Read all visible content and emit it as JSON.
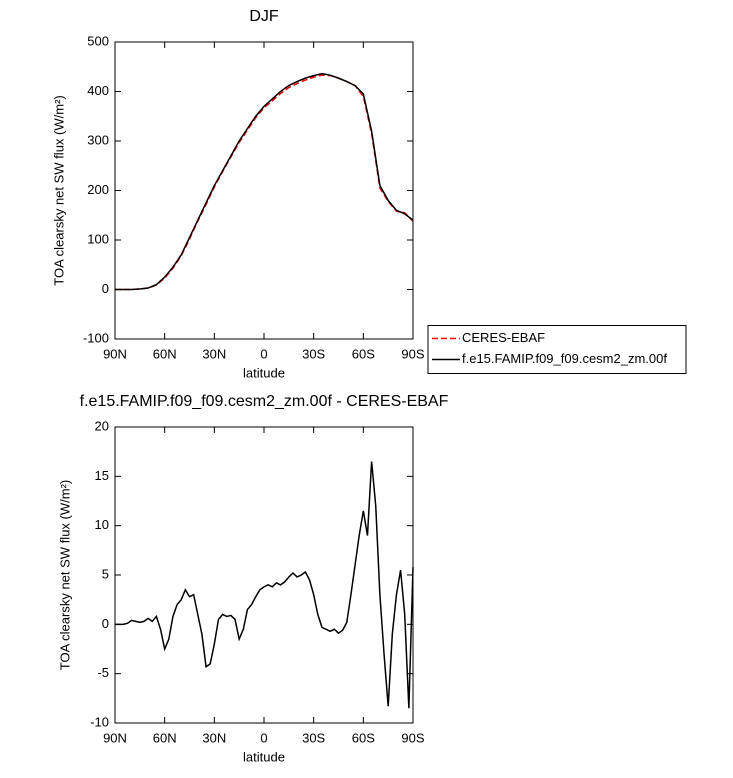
{
  "chart_data": [
    {
      "type": "line",
      "title": "DJF",
      "xlabel": "latitude",
      "ylabel": "TOA clearsky net SW flux (W/m²)",
      "x": [
        90,
        85,
        80,
        75,
        70,
        65,
        60,
        55,
        50,
        45,
        40,
        35,
        30,
        25,
        20,
        15,
        10,
        5,
        0,
        -5,
        -10,
        -15,
        -20,
        -25,
        -30,
        -35,
        -40,
        -45,
        -50,
        -55,
        -60,
        -65,
        -70,
        -75,
        -80,
        -85,
        -90
      ],
      "series": [
        {
          "name": "CERES-EBAF",
          "color": "#ff0000",
          "linestyle": "dashed",
          "values": [
            0,
            0,
            0,
            1,
            3,
            9,
            23,
            43,
            68,
            102,
            138,
            172,
            207,
            238,
            268,
            297,
            322,
            347,
            367,
            381,
            396,
            408,
            416,
            423,
            429,
            433,
            432,
            427,
            420,
            412,
            390,
            315,
            205,
            178,
            158,
            155,
            138
          ]
        },
        {
          "name": "f.e15.FAMIP.f09_f09.cesm2_zm.00f",
          "color": "#000000",
          "linestyle": "solid",
          "values": [
            0,
            0,
            0,
            1,
            3,
            10,
            25,
            45,
            70,
            105,
            140,
            175,
            210,
            240,
            270,
            300,
            325,
            350,
            370,
            385,
            400,
            412,
            420,
            427,
            432,
            436,
            433,
            427,
            420,
            412,
            395,
            320,
            210,
            180,
            160,
            153,
            140
          ]
        }
      ],
      "xlim": [
        90,
        -90
      ],
      "xticks": [
        {
          "value": 90,
          "label": "90N"
        },
        {
          "value": 60,
          "label": "60N"
        },
        {
          "value": 30,
          "label": "30N"
        },
        0,
        {
          "value": -30,
          "label": "30S"
        },
        {
          "value": -60,
          "label": "60S"
        },
        {
          "value": -90,
          "label": "90S"
        }
      ],
      "ylim": [
        -100,
        500
      ],
      "yticks": [
        -100,
        0,
        100,
        200,
        300,
        400,
        500
      ],
      "legend": "right"
    },
    {
      "type": "line",
      "title": "f.e15.FAMIP.f09_f09.cesm2_zm.00f - CERES-EBAF",
      "xlabel": "latitude",
      "ylabel": "TOA clearsky net SW flux (W/m²)",
      "x": [
        90,
        87.5,
        85,
        82.5,
        80,
        77.5,
        75,
        72.5,
        70,
        67.5,
        65,
        62.5,
        60,
        57.5,
        55,
        52.5,
        50,
        47.5,
        45,
        42.5,
        40,
        37.5,
        35,
        32.5,
        30,
        27.5,
        25,
        22.5,
        20,
        17.5,
        15,
        12.5,
        10,
        7.5,
        5,
        2.5,
        0,
        -2.5,
        -5,
        -7.5,
        -10,
        -12.5,
        -15,
        -17.5,
        -20,
        -22.5,
        -25,
        -27.5,
        -30,
        -32.5,
        -35,
        -37.5,
        -40,
        -42.5,
        -45,
        -47.5,
        -50,
        -52.5,
        -55,
        -57.5,
        -60,
        -62.5,
        -65,
        -67.5,
        -70,
        -72.5,
        -75,
        -77.5,
        -80,
        -82.5,
        -85,
        -87.5,
        -90
      ],
      "values": [
        0,
        0,
        0,
        0.1,
        0.4,
        0.3,
        0.2,
        0.3,
        0.6,
        0.3,
        0.8,
        -0.5,
        -2.5,
        -1.5,
        0.8,
        2.0,
        2.5,
        3.5,
        2.8,
        3.0,
        1.0,
        -1.0,
        -4.3,
        -4.0,
        -2.0,
        0.5,
        1.0,
        0.8,
        0.9,
        0.5,
        -1.5,
        -0.5,
        1.5,
        2.0,
        2.8,
        3.5,
        3.8,
        4.0,
        3.8,
        4.2,
        4.0,
        4.3,
        4.8,
        5.2,
        4.8,
        5.0,
        5.3,
        4.5,
        3.0,
        1.0,
        -0.3,
        -0.5,
        -0.7,
        -0.5,
        -0.9,
        -0.6,
        0.2,
        3.0,
        6.0,
        9.0,
        11.5,
        9.0,
        16.5,
        12.0,
        3.0,
        -3.0,
        -8.3,
        -1.0,
        3.0,
        5.5,
        1.0,
        -8.5,
        5.8
      ],
      "color": "#000000",
      "xlim": [
        90,
        -90
      ],
      "xticks": [
        {
          "value": 90,
          "label": "90N"
        },
        {
          "value": 60,
          "label": "60N"
        },
        {
          "value": 30,
          "label": "30N"
        },
        0,
        {
          "value": -30,
          "label": "30S"
        },
        {
          "value": -60,
          "label": "60S"
        },
        {
          "value": -90,
          "label": "90S"
        }
      ],
      "ylim": [
        -10,
        20
      ],
      "yticks": [
        -10,
        -5,
        0,
        5,
        10,
        15,
        20
      ]
    }
  ]
}
